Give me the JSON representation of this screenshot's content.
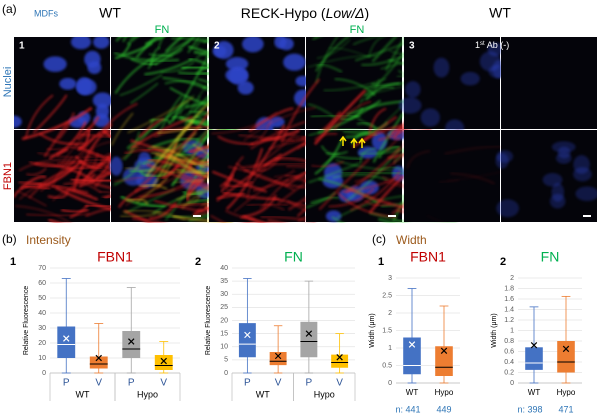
{
  "figure": {
    "panel_a": {
      "label": "(a)",
      "cell_type": "MDFs",
      "col1_title": "WT",
      "col2_title_parts": [
        "RECK-Hypo (",
        "Low/Δ",
        ")"
      ],
      "col3_title": "WT",
      "panels": [
        "1",
        "2",
        "3"
      ],
      "stain_label": "FN",
      "rows": [
        "Nuclei",
        "FBN1"
      ],
      "control_parts": [
        "1",
        "st",
        " Ab (-)"
      ]
    },
    "panel_b": {
      "label": "(b)",
      "title": "Intensity"
    },
    "panel_c": {
      "label": "(c)",
      "title": "Width"
    }
  },
  "chart_data": [
    {
      "type": "box",
      "panel": "1",
      "title": "FBN1",
      "title_color": "#c00000",
      "ylabel": "Relative Fluorescence",
      "ylim": [
        0,
        70
      ],
      "yticks": [
        0,
        10,
        20,
        30,
        40,
        50,
        60,
        70
      ],
      "grid": true,
      "categories": [
        "P",
        "V",
        "P",
        "V"
      ],
      "groups": [
        "WT",
        "Hypo"
      ],
      "series": [
        {
          "color": "#4472c4",
          "median_color": "#ffffff",
          "mean_color": "#ffffff",
          "whisker_low": 0,
          "q1": 10,
          "median": 19,
          "q3": 31,
          "whisker_high": 63,
          "mean": 23
        },
        {
          "color": "#ed7d31",
          "median_color": "#000000",
          "mean_color": "#000000",
          "whisker_low": 0,
          "q1": 3,
          "median": 6,
          "q3": 11,
          "whisker_high": 33,
          "mean": 10
        },
        {
          "color": "#a5a5a5",
          "median_color": "#000000",
          "mean_color": "#000000",
          "whisker_low": 0,
          "q1": 10,
          "median": 16,
          "q3": 28,
          "whisker_high": 57,
          "mean": 21
        },
        {
          "color": "#ffc000",
          "median_color": "#000000",
          "mean_color": "#000000",
          "whisker_low": 0,
          "q1": 2,
          "median": 5,
          "q3": 12,
          "whisker_high": 21,
          "mean": 8
        }
      ]
    },
    {
      "type": "box",
      "panel": "2",
      "title": "FN",
      "title_color": "#00b050",
      "ylabel": "Relative Fluorescence",
      "ylim": [
        0,
        40
      ],
      "yticks": [
        0,
        5,
        10,
        15,
        20,
        25,
        30,
        35,
        40
      ],
      "grid": true,
      "categories": [
        "P",
        "V",
        "P",
        "V"
      ],
      "groups": [
        "WT",
        "Hypo"
      ],
      "series": [
        {
          "color": "#4472c4",
          "median_color": "#ffffff",
          "mean_color": "#ffffff",
          "whisker_low": 0,
          "q1": 6,
          "median": 11,
          "q3": 19,
          "whisker_high": 36,
          "mean": 14.5
        },
        {
          "color": "#ed7d31",
          "median_color": "#000000",
          "mean_color": "#000000",
          "whisker_low": 0,
          "q1": 3,
          "median": 4.5,
          "q3": 8,
          "whisker_high": 18,
          "mean": 6.5
        },
        {
          "color": "#a5a5a5",
          "median_color": "#000000",
          "mean_color": "#000000",
          "whisker_low": 0,
          "q1": 6,
          "median": 12,
          "q3": 19.5,
          "whisker_high": 35,
          "mean": 15
        },
        {
          "color": "#ffc000",
          "median_color": "#000000",
          "mean_color": "#000000",
          "whisker_low": 0,
          "q1": 2,
          "median": 4,
          "q3": 7,
          "whisker_high": 15,
          "mean": 6
        }
      ]
    },
    {
      "type": "box",
      "panel": "1",
      "title": "FBN1",
      "title_color": "#c00000",
      "ylabel": "Width (μm)",
      "ylim": [
        0,
        3
      ],
      "yticks": [
        0,
        0.5,
        1,
        1.5,
        2,
        2.5,
        3
      ],
      "grid": true,
      "categories": [
        "WT",
        "Hypo"
      ],
      "n_labels": [
        "n: 441",
        "449"
      ],
      "series": [
        {
          "color": "#4472c4",
          "median_color": "#ffffff",
          "mean_color": "#ffffff",
          "whisker_low": 0,
          "q1": 0.25,
          "median": 0.5,
          "q3": 1.3,
          "whisker_high": 2.7,
          "mean": 1.1
        },
        {
          "color": "#ed7d31",
          "median_color": "#000000",
          "mean_color": "#000000",
          "whisker_low": 0,
          "q1": 0.2,
          "median": 0.45,
          "q3": 1.05,
          "whisker_high": 2.2,
          "mean": 0.92
        }
      ]
    },
    {
      "type": "box",
      "panel": "2",
      "title": "FN",
      "title_color": "#00b050",
      "ylabel": "Width (μm)",
      "ylim": [
        0,
        2
      ],
      "yticks": [
        0,
        0.2,
        0.4,
        0.6,
        0.8,
        1,
        1.2,
        1.4,
        1.6,
        1.8,
        2
      ],
      "grid": true,
      "categories": [
        "WT",
        "Hypo"
      ],
      "n_labels": [
        "n: 398",
        "471"
      ],
      "series": [
        {
          "color": "#4472c4",
          "median_color": "#ffffff",
          "mean_color": "#000000",
          "whisker_low": 0,
          "q1": 0.25,
          "median": 0.38,
          "q3": 0.68,
          "whisker_high": 1.45,
          "mean": 0.72
        },
        {
          "color": "#ed7d31",
          "median_color": "#000000",
          "mean_color": "#000000",
          "whisker_low": 0,
          "q1": 0.2,
          "median": 0.4,
          "q3": 0.8,
          "whisker_high": 1.65,
          "mean": 0.65
        }
      ]
    }
  ]
}
